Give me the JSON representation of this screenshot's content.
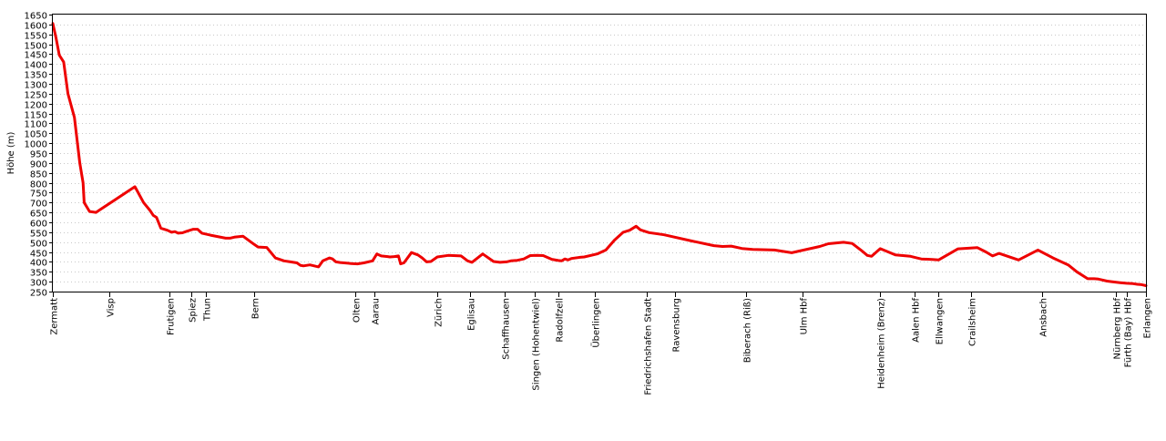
{
  "chart_data": {
    "type": "line",
    "title": "",
    "xlabel": "",
    "ylabel": "Höhe (m)",
    "ylim": [
      250,
      1650
    ],
    "ytick_step": 50,
    "grid": true,
    "x_unit": "km",
    "series": [
      {
        "color": "#ee0000",
        "points": [
          [
            0,
            1605
          ],
          [
            1.5,
            1530
          ],
          [
            3,
            1445
          ],
          [
            5,
            1410
          ],
          [
            7,
            1250
          ],
          [
            10,
            1130
          ],
          [
            12.5,
            900
          ],
          [
            14,
            800
          ],
          [
            14.5,
            700
          ],
          [
            17,
            655
          ],
          [
            20,
            650
          ],
          [
            22,
            665
          ],
          [
            38,
            780
          ],
          [
            42,
            700
          ],
          [
            45,
            660
          ],
          [
            46.5,
            635
          ],
          [
            48,
            625
          ],
          [
            50,
            570
          ],
          [
            51.5,
            565
          ],
          [
            53,
            560
          ],
          [
            55,
            550
          ],
          [
            56.5,
            553
          ],
          [
            58,
            545
          ],
          [
            60,
            547
          ],
          [
            62,
            555
          ],
          [
            65,
            565
          ],
          [
            67,
            565
          ],
          [
            69,
            545
          ],
          [
            73,
            535
          ],
          [
            80,
            520
          ],
          [
            82,
            520
          ],
          [
            84,
            525
          ],
          [
            88,
            530
          ],
          [
            93,
            490
          ],
          [
            95,
            475
          ],
          [
            99,
            473
          ],
          [
            103,
            420
          ],
          [
            107,
            405
          ],
          [
            110,
            400
          ],
          [
            113,
            395
          ],
          [
            114.5,
            383
          ],
          [
            116,
            380
          ],
          [
            119,
            385
          ],
          [
            123,
            375
          ],
          [
            125,
            405
          ],
          [
            128,
            420
          ],
          [
            129.5,
            415
          ],
          [
            131,
            400
          ],
          [
            133,
            397
          ],
          [
            138,
            392
          ],
          [
            141,
            390
          ],
          [
            144,
            395
          ],
          [
            148,
            405
          ],
          [
            150,
            440
          ],
          [
            152,
            430
          ],
          [
            155,
            427
          ],
          [
            156,
            425
          ],
          [
            158,
            427
          ],
          [
            160,
            430
          ],
          [
            161,
            390
          ],
          [
            162.5,
            395
          ],
          [
            166,
            447
          ],
          [
            169,
            435
          ],
          [
            171,
            420
          ],
          [
            173,
            400
          ],
          [
            175,
            402
          ],
          [
            178,
            425
          ],
          [
            183,
            433
          ],
          [
            189,
            430
          ],
          [
            192,
            405
          ],
          [
            194,
            398
          ],
          [
            199,
            440
          ],
          [
            204,
            402
          ],
          [
            207,
            398
          ],
          [
            210,
            400
          ],
          [
            212,
            405
          ],
          [
            215,
            408
          ],
          [
            218,
            415
          ],
          [
            221,
            432
          ],
          [
            224,
            433
          ],
          [
            227,
            432
          ],
          [
            231,
            413
          ],
          [
            234,
            407
          ],
          [
            235.5,
            405
          ],
          [
            237,
            415
          ],
          [
            238.5,
            410
          ],
          [
            240,
            417
          ],
          [
            244,
            423
          ],
          [
            246,
            425
          ],
          [
            252,
            440
          ],
          [
            256,
            460
          ],
          [
            260,
            510
          ],
          [
            264,
            550
          ],
          [
            267,
            560
          ],
          [
            270,
            580
          ],
          [
            272,
            562
          ],
          [
            276,
            548
          ],
          [
            283,
            537
          ],
          [
            296,
            505
          ],
          [
            306,
            482
          ],
          [
            310,
            478
          ],
          [
            314,
            480
          ],
          [
            319,
            468
          ],
          [
            324,
            463
          ],
          [
            334,
            460
          ],
          [
            342,
            446
          ],
          [
            355,
            478
          ],
          [
            359,
            492
          ],
          [
            366,
            499
          ],
          [
            370,
            493
          ],
          [
            374,
            460
          ],
          [
            377,
            433
          ],
          [
            379,
            428
          ],
          [
            383,
            467
          ],
          [
            390,
            435
          ],
          [
            397,
            428
          ],
          [
            400,
            420
          ],
          [
            402,
            415
          ],
          [
            407,
            412
          ],
          [
            410,
            410
          ],
          [
            419,
            466
          ],
          [
            428,
            472
          ],
          [
            432,
            450
          ],
          [
            435,
            430
          ],
          [
            438,
            443
          ],
          [
            447,
            410
          ],
          [
            456,
            460
          ],
          [
            463,
            420
          ],
          [
            470,
            385
          ],
          [
            474,
            350
          ],
          [
            479,
            315
          ],
          [
            482,
            315
          ],
          [
            484,
            313
          ],
          [
            488,
            303
          ],
          [
            490,
            300
          ],
          [
            494,
            295
          ],
          [
            497,
            292
          ],
          [
            500,
            290
          ],
          [
            502,
            287
          ],
          [
            504,
            285
          ],
          [
            506,
            280
          ]
        ]
      }
    ],
    "stations": [
      {
        "name": "Zermatt",
        "km": 0
      },
      {
        "name": "Visp",
        "km": 26
      },
      {
        "name": "Frutigen",
        "km": 54
      },
      {
        "name": "Spiez",
        "km": 64
      },
      {
        "name": "Thun",
        "km": 71
      },
      {
        "name": "Bern",
        "km": 93
      },
      {
        "name": "Olten",
        "km": 140
      },
      {
        "name": "Aarau",
        "km": 149
      },
      {
        "name": "Zürich",
        "km": 178
      },
      {
        "name": "Eglisau",
        "km": 193
      },
      {
        "name": "Schaffhausen",
        "km": 209
      },
      {
        "name": "Singen (Hohentwiel)",
        "km": 223
      },
      {
        "name": "Radolfzell",
        "km": 234
      },
      {
        "name": "Überlingen",
        "km": 251
      },
      {
        "name": "Friedrichshafen Stadt",
        "km": 275
      },
      {
        "name": "Ravensburg",
        "km": 288
      },
      {
        "name": "Biberach (Riß)",
        "km": 321
      },
      {
        "name": "Ulm Hbf",
        "km": 347
      },
      {
        "name": "Heidenheim (Brenz)",
        "km": 383
      },
      {
        "name": "Aalen Hbf",
        "km": 399
      },
      {
        "name": "Ellwangen",
        "km": 410
      },
      {
        "name": "Crailsheim",
        "km": 425
      },
      {
        "name": "Ansbach",
        "km": 458
      },
      {
        "name": "Nürnberg Hbf",
        "km": 492
      },
      {
        "name": "Fürth (Bay) Hbf",
        "km": 497
      },
      {
        "name": "Erlangen",
        "km": 506
      }
    ]
  }
}
